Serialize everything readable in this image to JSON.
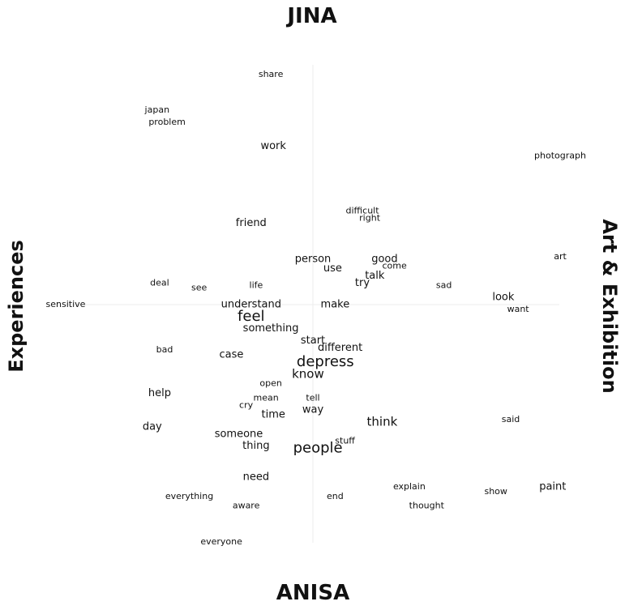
{
  "chart_data": {
    "type": "scatter",
    "axes": {
      "top": "JINA",
      "bottom": "ANISA",
      "left": "Experiences",
      "right": "Art & Exhibition"
    },
    "xlim": [
      -1,
      1
    ],
    "ylim": [
      -1,
      1
    ],
    "grid": false,
    "points": [
      {
        "label": "share",
        "x": -0.17,
        "y": 0.96,
        "size": 1
      },
      {
        "label": "japan",
        "x": -0.63,
        "y": 0.81,
        "size": 1
      },
      {
        "label": "problem",
        "x": -0.59,
        "y": 0.76,
        "size": 1
      },
      {
        "label": "work",
        "x": -0.16,
        "y": 0.66,
        "size": 2
      },
      {
        "label": "photograph",
        "x": 1.0,
        "y": 0.62,
        "size": 1
      },
      {
        "label": "difficult",
        "x": 0.2,
        "y": 0.39,
        "size": 1
      },
      {
        "label": "right",
        "x": 0.23,
        "y": 0.36,
        "size": 1
      },
      {
        "label": "friend",
        "x": -0.25,
        "y": 0.34,
        "size": 2
      },
      {
        "label": "person",
        "x": 0.0,
        "y": 0.19,
        "size": 2
      },
      {
        "label": "good",
        "x": 0.29,
        "y": 0.19,
        "size": 2
      },
      {
        "label": "use",
        "x": 0.08,
        "y": 0.15,
        "size": 2
      },
      {
        "label": "come",
        "x": 0.33,
        "y": 0.16,
        "size": 1
      },
      {
        "label": "talk",
        "x": 0.25,
        "y": 0.12,
        "size": 2
      },
      {
        "label": "art",
        "x": 1.0,
        "y": 0.2,
        "size": 1
      },
      {
        "label": "try",
        "x": 0.2,
        "y": 0.09,
        "size": 2
      },
      {
        "label": "deal",
        "x": -0.62,
        "y": 0.09,
        "size": 1
      },
      {
        "label": "see",
        "x": -0.46,
        "y": 0.07,
        "size": 1
      },
      {
        "label": "life",
        "x": -0.23,
        "y": 0.08,
        "size": 1
      },
      {
        "label": "sad",
        "x": 0.53,
        "y": 0.08,
        "size": 1
      },
      {
        "label": "look",
        "x": 0.77,
        "y": 0.03,
        "size": 2
      },
      {
        "label": "sensitive",
        "x": -1.0,
        "y": 0.0,
        "size": 1
      },
      {
        "label": "understand",
        "x": -0.25,
        "y": 0.0,
        "size": 2
      },
      {
        "label": "make",
        "x": 0.09,
        "y": 0.0,
        "size": 2
      },
      {
        "label": "want",
        "x": 0.83,
        "y": -0.02,
        "size": 1
      },
      {
        "label": "feel",
        "x": -0.25,
        "y": -0.05,
        "size": 4
      },
      {
        "label": "something",
        "x": -0.17,
        "y": -0.1,
        "size": 2
      },
      {
        "label": "start",
        "x": 0.0,
        "y": -0.15,
        "size": 2
      },
      {
        "label": "different",
        "x": 0.11,
        "y": -0.18,
        "size": 2
      },
      {
        "label": "bad",
        "x": -0.6,
        "y": -0.19,
        "size": 1
      },
      {
        "label": "case",
        "x": -0.33,
        "y": -0.21,
        "size": 2
      },
      {
        "label": "depress",
        "x": 0.05,
        "y": -0.24,
        "size": 4
      },
      {
        "label": "know",
        "x": -0.02,
        "y": -0.29,
        "size": 3
      },
      {
        "label": "open",
        "x": -0.17,
        "y": -0.33,
        "size": 1
      },
      {
        "label": "help",
        "x": -0.62,
        "y": -0.37,
        "size": 2
      },
      {
        "label": "mean",
        "x": -0.19,
        "y": -0.39,
        "size": 1
      },
      {
        "label": "tell",
        "x": 0.0,
        "y": -0.39,
        "size": 1
      },
      {
        "label": "cry",
        "x": -0.27,
        "y": -0.42,
        "size": 1
      },
      {
        "label": "way",
        "x": 0.0,
        "y": -0.44,
        "size": 2
      },
      {
        "label": "time",
        "x": -0.16,
        "y": -0.46,
        "size": 2
      },
      {
        "label": "think",
        "x": 0.28,
        "y": -0.49,
        "size": 3
      },
      {
        "label": "said",
        "x": 0.8,
        "y": -0.48,
        "size": 1
      },
      {
        "label": "day",
        "x": -0.65,
        "y": -0.51,
        "size": 2
      },
      {
        "label": "someone",
        "x": -0.3,
        "y": -0.54,
        "size": 2
      },
      {
        "label": "stuff",
        "x": 0.13,
        "y": -0.57,
        "size": 1
      },
      {
        "label": "thing",
        "x": -0.23,
        "y": -0.59,
        "size": 2
      },
      {
        "label": "people",
        "x": 0.02,
        "y": -0.6,
        "size": 4
      },
      {
        "label": "need",
        "x": -0.23,
        "y": -0.72,
        "size": 2
      },
      {
        "label": "explain",
        "x": 0.39,
        "y": -0.76,
        "size": 1
      },
      {
        "label": "paint",
        "x": 0.97,
        "y": -0.76,
        "size": 2
      },
      {
        "label": "show",
        "x": 0.74,
        "y": -0.78,
        "size": 1
      },
      {
        "label": "everything",
        "x": -0.5,
        "y": -0.8,
        "size": 1
      },
      {
        "label": "end",
        "x": 0.09,
        "y": -0.8,
        "size": 1
      },
      {
        "label": "aware",
        "x": -0.27,
        "y": -0.84,
        "size": 1
      },
      {
        "label": "thought",
        "x": 0.46,
        "y": -0.84,
        "size": 1
      },
      {
        "label": "everyone",
        "x": -0.37,
        "y": -0.99,
        "size": 1
      }
    ]
  }
}
